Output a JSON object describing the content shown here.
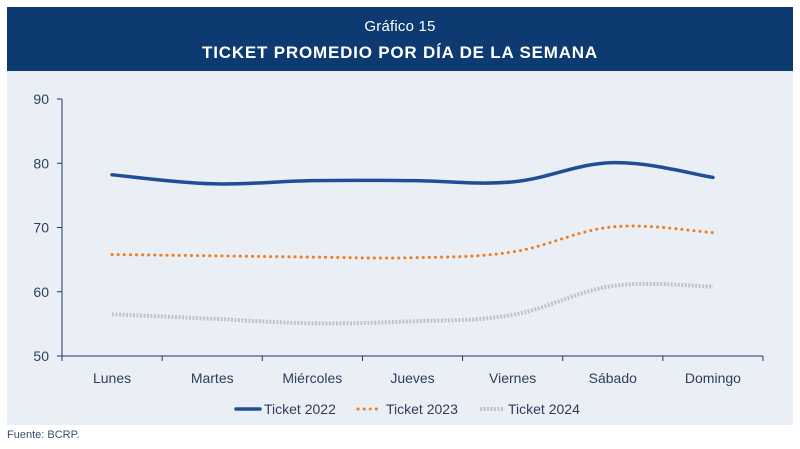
{
  "header": {
    "subtitle": "Gráfico 15",
    "title": "TICKET PROMEDIO POR DÍA DE LA SEMANA"
  },
  "footer": {
    "source": "Fuente: BCRP."
  },
  "chart_data": {
    "type": "line",
    "title": "TICKET PROMEDIO POR DÍA DE LA SEMANA",
    "categories": [
      "Lunes",
      "Martes",
      "Miércoles",
      "Jueves",
      "Viernes",
      "Sábado",
      "Domingo"
    ],
    "ylim": [
      50,
      90
    ],
    "yticks": [
      50,
      60,
      70,
      80,
      90
    ],
    "grid": false,
    "legend_position": "bottom",
    "series": [
      {
        "name": "Ticket 2022",
        "values": [
          78.2,
          76.8,
          77.3,
          77.3,
          77.1,
          80.1,
          77.8
        ],
        "color": "#1f4e96",
        "style": "solid"
      },
      {
        "name": "Ticket 2023",
        "values": [
          65.8,
          65.6,
          65.4,
          65.3,
          66.2,
          70.1,
          69.2
        ],
        "color": "#ee7d22",
        "style": "dotted"
      },
      {
        "name": "Ticket 2024",
        "values": [
          56.5,
          55.8,
          55.1,
          55.4,
          56.4,
          60.9,
          60.8
        ],
        "color": "#c3c3c3",
        "style": "dashed-gray"
      }
    ]
  }
}
